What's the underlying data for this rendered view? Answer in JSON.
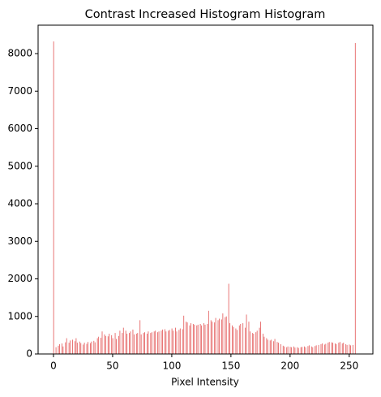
{
  "chart_data": {
    "type": "histogram",
    "title": "Contrast Increased Histogram Histogram",
    "xlabel": "Pixel Intensity",
    "color": "#e04848",
    "bins": [
      0,
      1,
      2,
      3,
      4,
      5,
      6,
      7,
      8,
      9,
      10,
      11,
      12,
      13,
      14,
      15,
      16,
      17,
      18,
      19,
      20,
      21,
      22,
      23,
      24,
      25,
      26,
      27,
      28,
      29,
      30,
      31,
      32,
      33,
      34,
      35,
      36,
      37,
      38,
      39,
      40,
      41,
      42,
      43,
      44,
      45,
      46,
      47,
      48,
      49,
      50,
      51,
      52,
      53,
      54,
      55,
      56,
      57,
      58,
      59,
      60,
      61,
      62,
      63,
      64,
      65,
      66,
      67,
      68,
      69,
      70,
      71,
      72,
      73,
      74,
      75,
      76,
      77,
      78,
      79,
      80,
      81,
      82,
      83,
      84,
      85,
      86,
      87,
      88,
      89,
      90,
      91,
      92,
      93,
      94,
      95,
      96,
      97,
      98,
      99,
      100,
      101,
      102,
      103,
      104,
      105,
      106,
      107,
      108,
      109,
      110,
      111,
      112,
      113,
      114,
      115,
      116,
      117,
      118,
      119,
      120,
      121,
      122,
      123,
      124,
      125,
      126,
      127,
      128,
      129,
      130,
      131,
      132,
      133,
      134,
      135,
      136,
      137,
      138,
      139,
      140,
      141,
      142,
      143,
      144,
      145,
      146,
      147,
      148,
      149,
      150,
      151,
      152,
      153,
      154,
      155,
      156,
      157,
      158,
      159,
      160,
      161,
      162,
      163,
      164,
      165,
      166,
      167,
      168,
      169,
      170,
      171,
      172,
      173,
      174,
      175,
      176,
      177,
      178,
      179,
      180,
      181,
      182,
      183,
      184,
      185,
      186,
      187,
      188,
      189,
      190,
      191,
      192,
      193,
      194,
      195,
      196,
      197,
      198,
      199,
      200,
      201,
      202,
      203,
      204,
      205,
      206,
      207,
      208,
      209,
      210,
      211,
      212,
      213,
      214,
      215,
      216,
      217,
      218,
      219,
      220,
      221,
      222,
      223,
      224,
      225,
      226,
      227,
      228,
      229,
      230,
      231,
      232,
      233,
      234,
      235,
      236,
      237,
      238,
      239,
      240,
      241,
      242,
      243,
      244,
      245,
      246,
      247,
      248,
      249,
      250,
      251,
      252,
      253,
      254,
      255,
      256
    ],
    "counts": [
      8324,
      0,
      180,
      0,
      220,
      260,
      0,
      280,
      200,
      0,
      310,
      420,
      0,
      300,
      360,
      0,
      380,
      0,
      340,
      420,
      300,
      0,
      330,
      290,
      0,
      250,
      300,
      0,
      270,
      320,
      0,
      290,
      330,
      0,
      350,
      310,
      0,
      420,
      460,
      0,
      430,
      600,
      0,
      520,
      480,
      0,
      470,
      540,
      0,
      500,
      420,
      0,
      560,
      400,
      0,
      480,
      620,
      0,
      560,
      700,
      0,
      620,
      540,
      0,
      560,
      600,
      0,
      650,
      520,
      0,
      540,
      560,
      0,
      900,
      520,
      0,
      560,
      580,
      0,
      540,
      600,
      0,
      560,
      580,
      0,
      600,
      620,
      0,
      580,
      600,
      0,
      620,
      650,
      0,
      660,
      600,
      0,
      620,
      640,
      0,
      680,
      620,
      0,
      700,
      600,
      0,
      640,
      680,
      0,
      660,
      1020,
      0,
      860,
      840,
      0,
      760,
      820,
      0,
      800,
      780,
      0,
      760,
      780,
      0,
      800,
      760,
      0,
      820,
      780,
      0,
      800,
      1150,
      0,
      900,
      860,
      0,
      840,
      960,
      0,
      900,
      940,
      0,
      920,
      1080,
      0,
      980,
      1000,
      0,
      1870,
      820,
      0,
      760,
      720,
      0,
      680,
      640,
      0,
      760,
      800,
      0,
      820,
      0,
      700,
      1050,
      0,
      860,
      600,
      0,
      560,
      540,
      0,
      580,
      620,
      0,
      700,
      860,
      0,
      540,
      460,
      0,
      420,
      380,
      0,
      360,
      380,
      0,
      340,
      400,
      0,
      320,
      300,
      0,
      260,
      0,
      220,
      200,
      0,
      180,
      200,
      0,
      190,
      180,
      0,
      200,
      170,
      0,
      180,
      160,
      0,
      180,
      190,
      0,
      200,
      180,
      0,
      210,
      230,
      0,
      200,
      180,
      0,
      210,
      230,
      0,
      240,
      0,
      260,
      280,
      0,
      250,
      270,
      0,
      300,
      320,
      0,
      310,
      300,
      0,
      280,
      260,
      0,
      300,
      320,
      0,
      280,
      300,
      0,
      260,
      240,
      0,
      250,
      230,
      0,
      240,
      0,
      8281
    ],
    "xlim": [
      -13,
      270
    ],
    "ylim": [
      0,
      8757
    ],
    "xticks": [
      0,
      50,
      100,
      150,
      200,
      250
    ],
    "yticks": [
      0,
      1000,
      2000,
      3000,
      4000,
      5000,
      6000,
      7000,
      8000
    ]
  }
}
